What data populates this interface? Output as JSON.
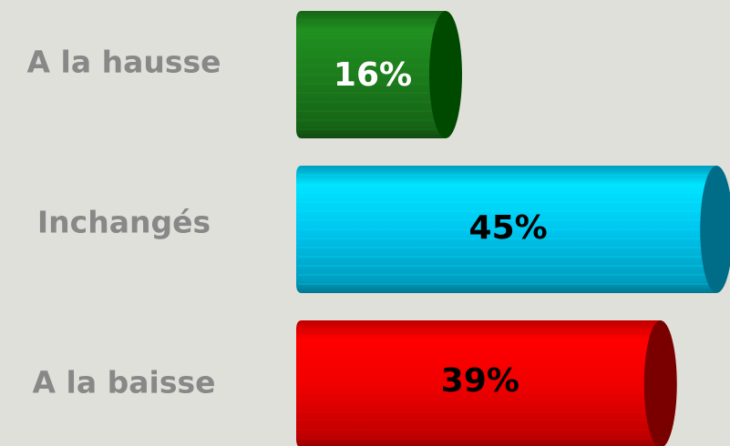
{
  "chart_data": {
    "type": "bar",
    "orientation": "horizontal",
    "categories": [
      "A la hausse",
      "Inchangés",
      "A la baisse"
    ],
    "values": [
      16,
      45,
      39
    ],
    "value_labels": [
      "16%",
      "45%",
      "39%"
    ],
    "colors": [
      "#1c7d1c",
      "#00c6f0",
      "#f00000"
    ],
    "cap_colors": [
      "#004a00",
      "#006d88",
      "#7a0000"
    ],
    "value_label_colors": [
      "#ffffff",
      "#000000",
      "#000000"
    ]
  }
}
